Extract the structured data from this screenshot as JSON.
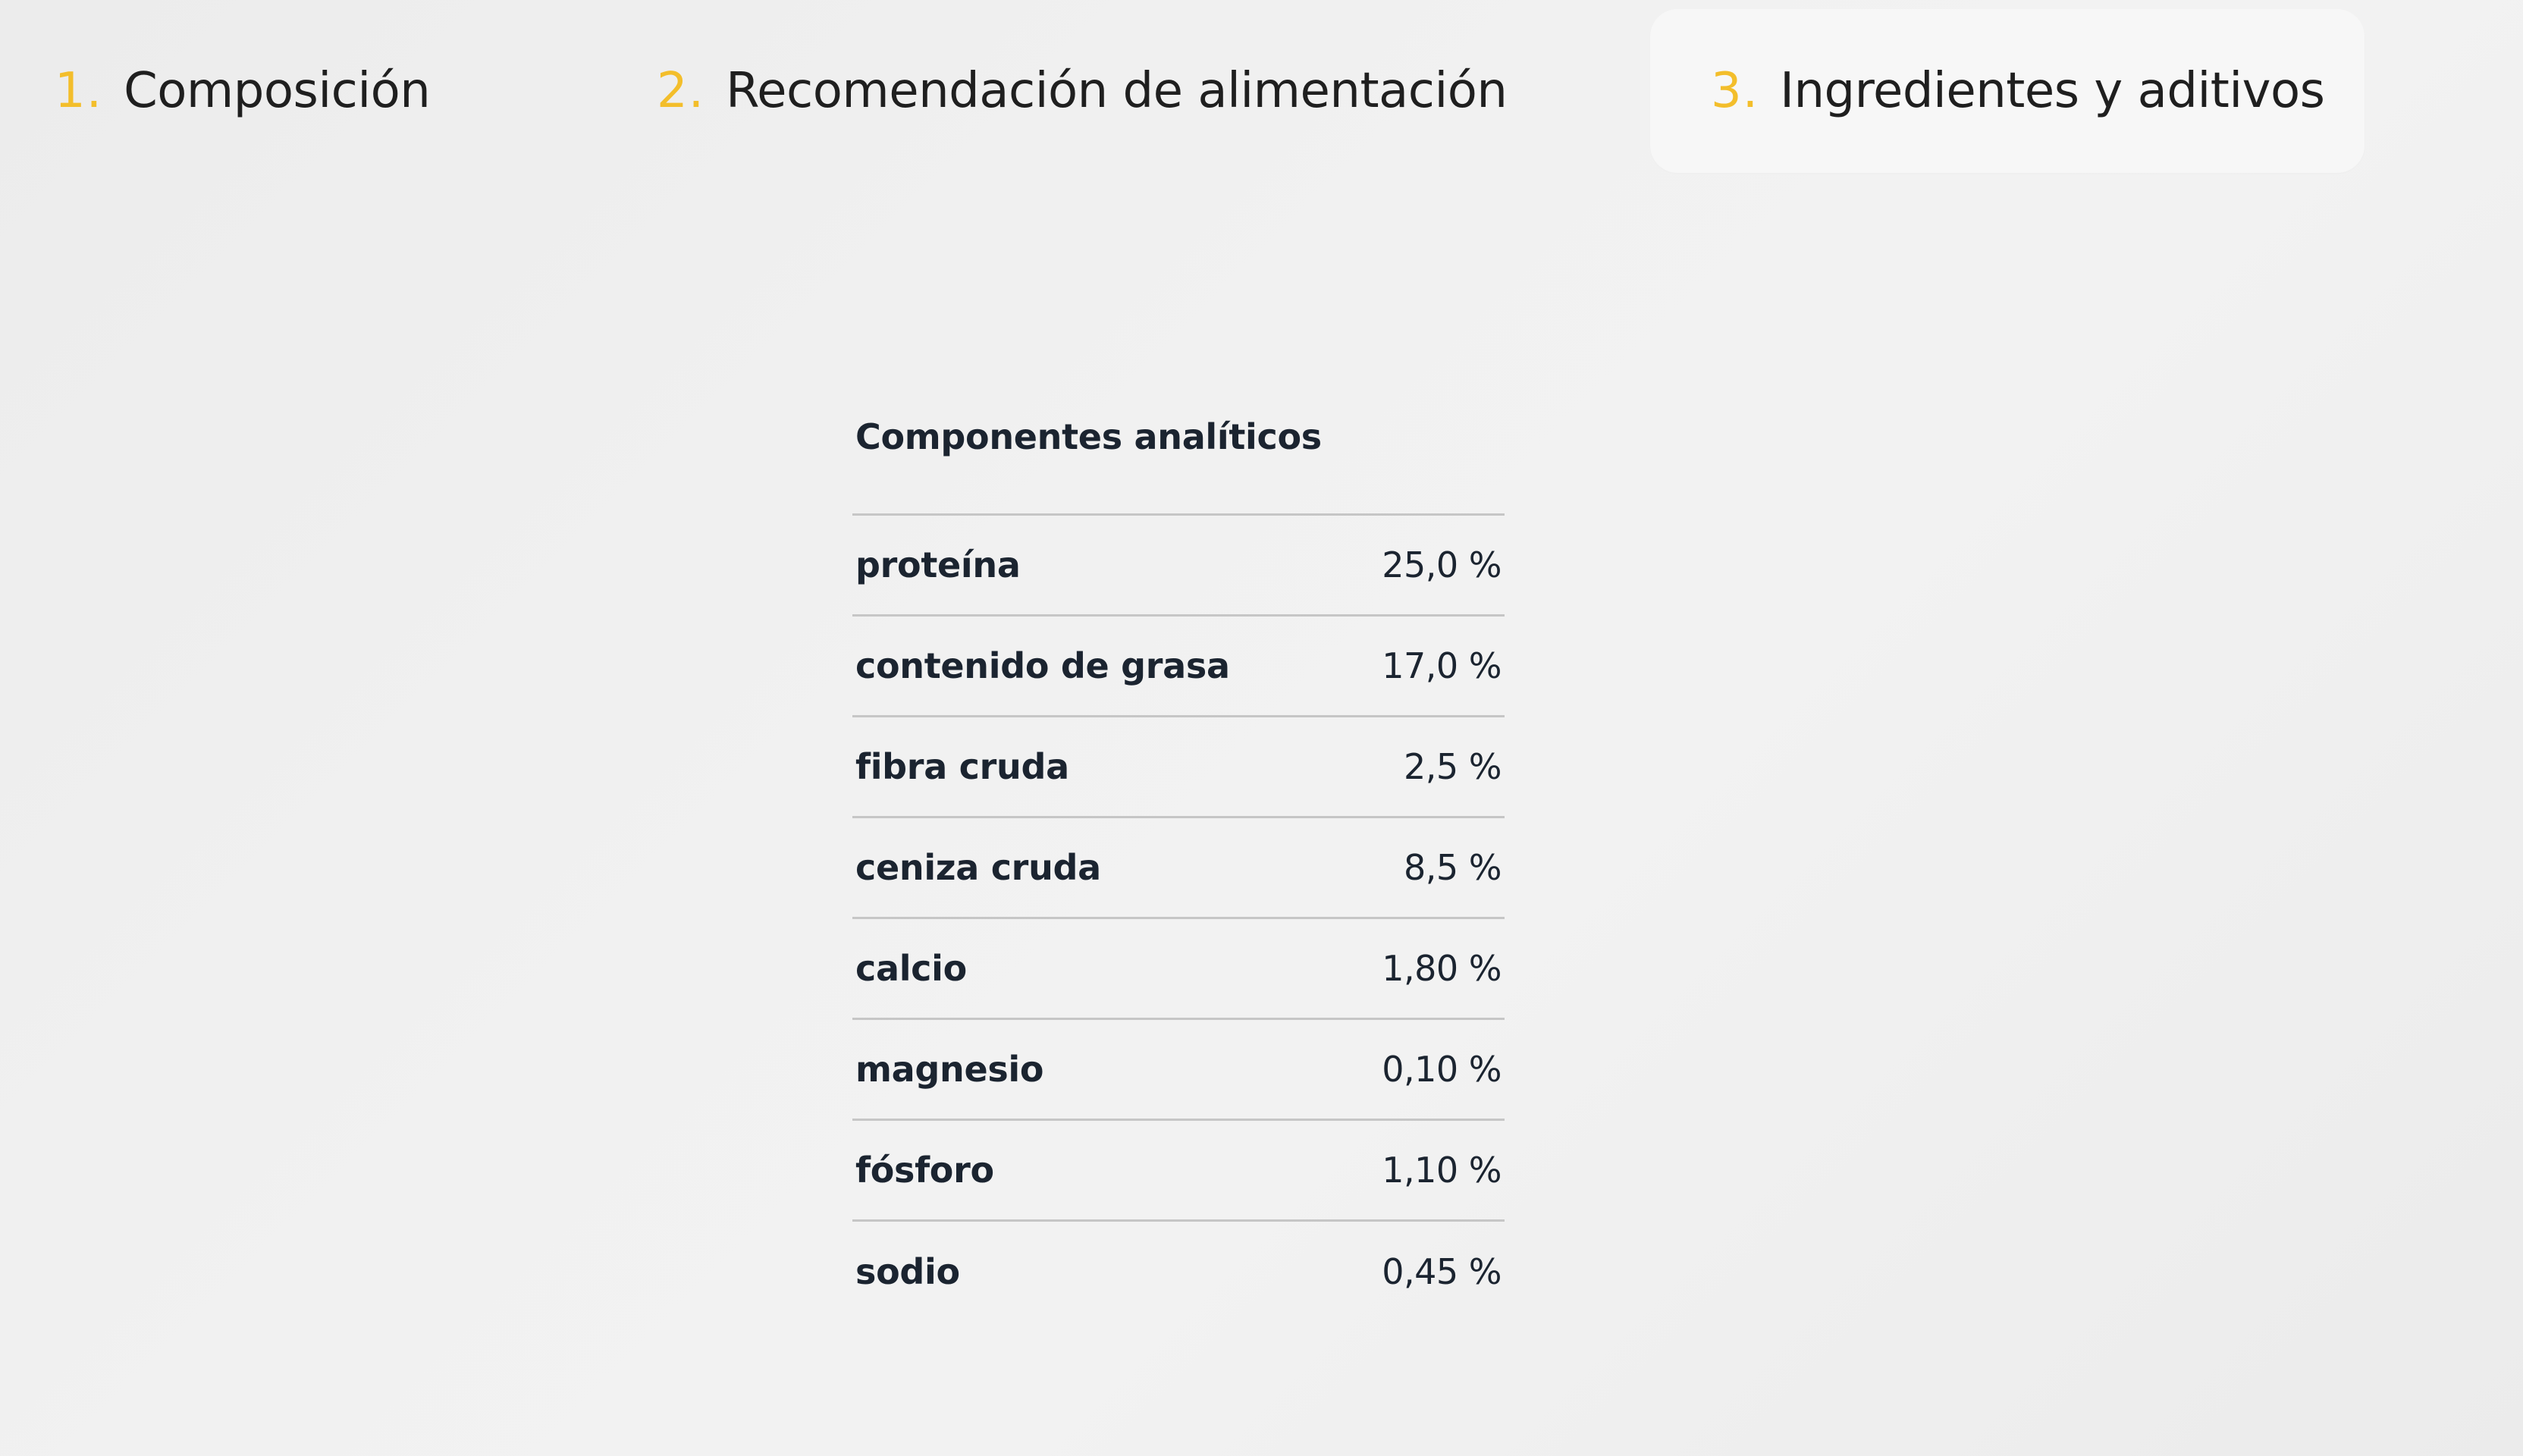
{
  "tabs": [
    {
      "number": "1.",
      "label": "Composición",
      "active": false
    },
    {
      "number": "2.",
      "label": "Recomendación de alimentación",
      "active": false
    },
    {
      "number": "3.",
      "label": "Ingredientes y aditivos",
      "active": true
    }
  ],
  "colors": {
    "accent": "#f3be2b",
    "text": "#1b2430",
    "divider": "#c6c6c6",
    "active_tab_bg": "#f7f7f7"
  },
  "analytic": {
    "title": "Componentes analíticos",
    "rows": [
      {
        "name": "proteína",
        "value": "25,0 %"
      },
      {
        "name": "contenido de grasa",
        "value": "17,0 %"
      },
      {
        "name": "fibra cruda",
        "value": "2,5 %"
      },
      {
        "name": "ceniza cruda",
        "value": "8,5 %"
      },
      {
        "name": "calcio",
        "value": "1,80 %"
      },
      {
        "name": "magnesio",
        "value": "0,10 %"
      },
      {
        "name": "fósforo",
        "value": "1,10 %"
      },
      {
        "name": "sodio",
        "value": "0,45 %"
      }
    ]
  }
}
